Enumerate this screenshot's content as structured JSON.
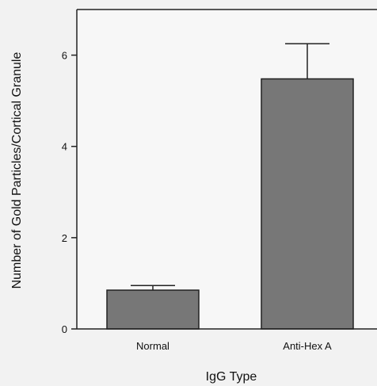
{
  "chart_data": {
    "type": "bar",
    "categories": [
      "Normal",
      "Anti-Hex A"
    ],
    "values": [
      0.85,
      5.48
    ],
    "errors": [
      0.1,
      0.77
    ],
    "xlabel": "IgG Type",
    "ylabel": "Number of Gold Particles/Cortical Granule",
    "ylim": [
      0,
      7
    ],
    "yticks": [
      0,
      2,
      4,
      6
    ],
    "grid": false,
    "bar_color": "#777777"
  }
}
